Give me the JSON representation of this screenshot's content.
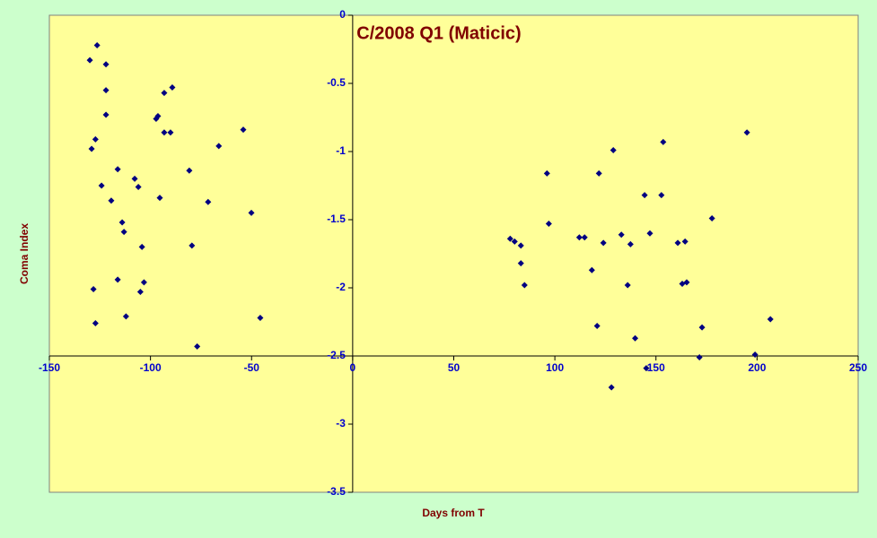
{
  "chart_data": {
    "type": "scatter",
    "title": "C/2008 Q1 (Maticic)",
    "x_label": "Days from T",
    "y_label": "Coma Index",
    "xlim": [
      -150,
      250
    ],
    "ylim": [
      -3.5,
      0
    ],
    "xticks": [
      -150,
      -100,
      -50,
      0,
      50,
      100,
      150,
      200,
      250
    ],
    "yticks": [
      0,
      -0.5,
      -1,
      -1.5,
      -2,
      -2.5,
      -3,
      -3.5
    ],
    "series": [
      {
        "color": "#000080",
        "x": [
          -130.0,
          -126.4,
          -122.0,
          -122.0,
          -122.0,
          -127.2,
          -129.1,
          -116.2,
          -124.2,
          -119.4,
          -107.8,
          -106.0,
          -114.0,
          -113.1,
          -104.2,
          -128.2,
          -116.2,
          -103.2,
          -105.0,
          -112.1,
          -127.2,
          -97.2,
          -96.3,
          -93.2,
          -89.2,
          -93.2,
          -90.1,
          -95.4,
          -80.8,
          -79.5,
          -71.5,
          -66.2,
          -76.9,
          -54.1,
          -50.1,
          -45.7,
          77.9,
          80.1,
          83.2,
          83.2,
          85.0,
          96.1,
          97.0,
          112.1,
          114.7,
          118.3,
          121.8,
          120.9,
          124.0,
          128.9,
          128.0,
          132.9,
          136.0,
          137.4,
          139.7,
          144.4,
          145.2,
          147.0,
          152.7,
          153.6,
          160.8,
          164.4,
          163.0,
          165.2,
          171.5,
          172.8,
          177.7,
          195.0,
          199.0,
          206.6
        ],
        "values": [
          -0.33,
          -0.22,
          -0.36,
          -0.55,
          -0.73,
          -0.91,
          -0.98,
          -1.13,
          -1.25,
          -1.36,
          -1.2,
          -1.26,
          -1.52,
          -1.59,
          -1.7,
          -2.01,
          -1.94,
          -1.96,
          -2.03,
          -2.21,
          -2.26,
          -0.76,
          -0.74,
          -0.57,
          -0.53,
          -0.86,
          -0.86,
          -1.34,
          -1.14,
          -1.69,
          -1.37,
          -0.96,
          -2.43,
          -0.84,
          -1.45,
          -2.22,
          -1.64,
          -1.66,
          -1.69,
          -1.82,
          -1.98,
          -1.16,
          -1.53,
          -1.63,
          -1.63,
          -1.87,
          -1.16,
          -2.28,
          -1.67,
          -0.99,
          -2.73,
          -1.61,
          -1.98,
          -1.68,
          -2.37,
          -1.32,
          -2.59,
          -1.6,
          -1.32,
          -0.93,
          -1.67,
          -1.66,
          -1.97,
          -1.96,
          -2.51,
          -2.29,
          -1.49,
          -0.86,
          -2.49,
          -2.23
        ]
      }
    ],
    "x_axis_at": -2.5,
    "y_axis_at": 0
  }
}
